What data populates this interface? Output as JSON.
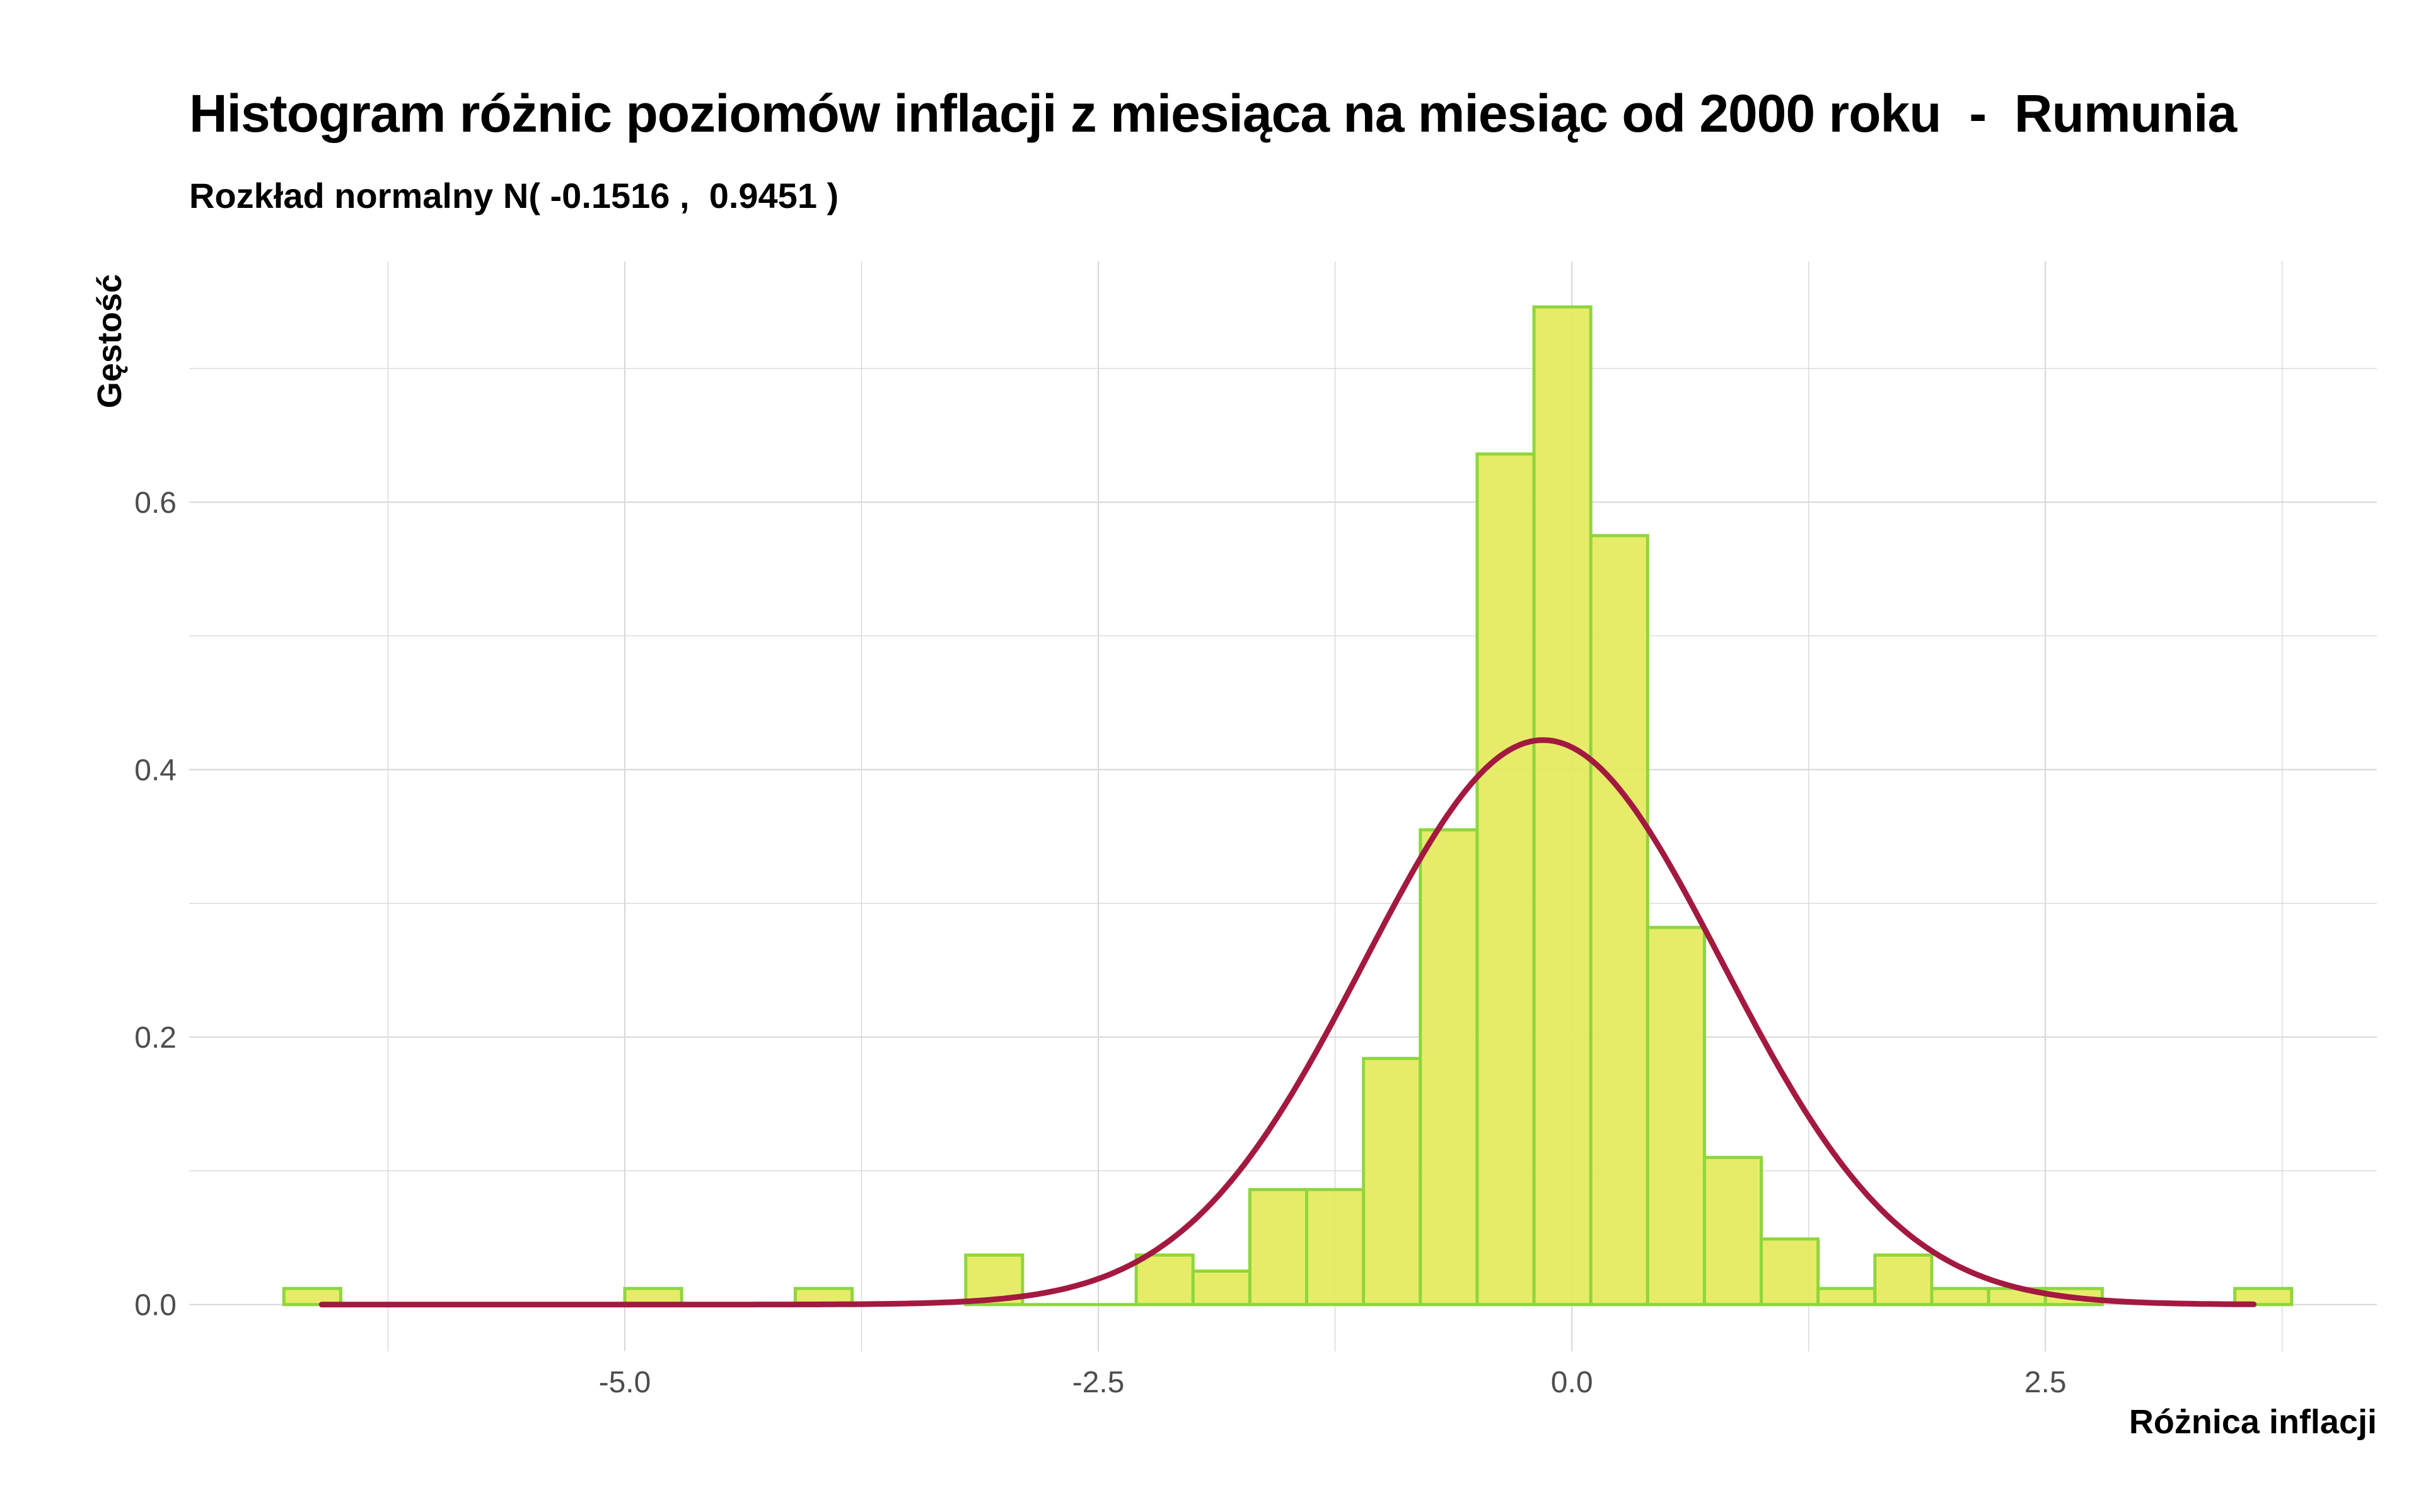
{
  "chart_data": {
    "type": "bar",
    "title": "Histogram różnic poziomów inflacji z miesiąca na miesiąc od 2000 roku  -  Rumunia",
    "subtitle": "Rozkład normalny N( -0.1516 ,  0.9451 )",
    "xlabel": "Różnica inflacji",
    "ylabel": "Gęstość",
    "xlim": [
      -7.3,
      4.25
    ],
    "ylim": [
      -0.035,
      0.78
    ],
    "x_ticks": [
      -5.0,
      -2.5,
      0.0,
      2.5
    ],
    "x_tick_labels": [
      "-5.0",
      "-2.5",
      "0.0",
      "2.5"
    ],
    "y_ticks": [
      0.0,
      0.2,
      0.4,
      0.6
    ],
    "y_tick_labels": [
      "0.0",
      "0.2",
      "0.4",
      "0.6"
    ],
    "grid": true,
    "bin_width": 0.3,
    "bins": [
      {
        "x0": -6.8,
        "x1": -6.5,
        "density": 0.012
      },
      {
        "x0": -5.0,
        "x1": -4.7,
        "density": 0.012
      },
      {
        "x0": -4.1,
        "x1": -3.8,
        "density": 0.012
      },
      {
        "x0": -3.2,
        "x1": -2.9,
        "density": 0.037
      },
      {
        "x0": -2.9,
        "x1": -2.6,
        "density": 0.0
      },
      {
        "x0": -2.6,
        "x1": -2.3,
        "density": 0.0
      },
      {
        "x0": -2.3,
        "x1": -2.0,
        "density": 0.037
      },
      {
        "x0": -2.0,
        "x1": -1.7,
        "density": 0.025
      },
      {
        "x0": -1.7,
        "x1": -1.4,
        "density": 0.086
      },
      {
        "x0": -1.4,
        "x1": -1.1,
        "density": 0.086
      },
      {
        "x0": -1.1,
        "x1": -0.8,
        "density": 0.184
      },
      {
        "x0": -0.8,
        "x1": -0.5,
        "density": 0.355
      },
      {
        "x0": -0.5,
        "x1": -0.2,
        "density": 0.636
      },
      {
        "x0": -0.2,
        "x1": 0.1,
        "density": 0.746
      },
      {
        "x0": 0.1,
        "x1": 0.4,
        "density": 0.575
      },
      {
        "x0": 0.4,
        "x1": 0.7,
        "density": 0.282
      },
      {
        "x0": 0.7,
        "x1": 1.0,
        "density": 0.11
      },
      {
        "x0": 1.0,
        "x1": 1.3,
        "density": 0.049
      },
      {
        "x0": 1.3,
        "x1": 1.6,
        "density": 0.012
      },
      {
        "x0": 1.6,
        "x1": 1.9,
        "density": 0.037
      },
      {
        "x0": 1.9,
        "x1": 2.2,
        "density": 0.012
      },
      {
        "x0": 2.2,
        "x1": 2.5,
        "density": 0.012
      },
      {
        "x0": 2.5,
        "x1": 2.8,
        "density": 0.012
      },
      {
        "x0": 3.5,
        "x1": 3.8,
        "density": 0.012
      }
    ],
    "normal_curve": {
      "mean": -0.1516,
      "sd": 0.9451,
      "x_range": [
        -6.6,
        3.6
      ]
    },
    "colors": {
      "bar_fill": "#e4ea5c",
      "bar_outline": "#8ed63c",
      "curve": "#a31940",
      "grid": "#d9d9d9"
    }
  }
}
